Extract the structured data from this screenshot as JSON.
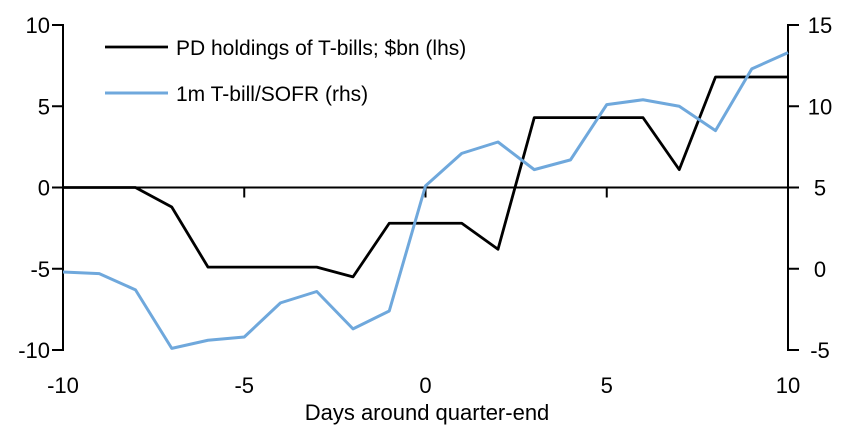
{
  "chart_data": {
    "type": "line",
    "title": "",
    "xlabel": "Days around quarter-end",
    "grid": false,
    "zero_line": true,
    "legend_position": "top-left",
    "x": [
      -10,
      -9,
      -8,
      -7,
      -6,
      -5,
      -4,
      -3,
      -2,
      -1,
      0,
      1,
      2,
      3,
      4,
      5,
      6,
      7,
      8,
      9,
      10
    ],
    "series": [
      {
        "name": "PD holdings of T-bills; $bn (lhs)",
        "axis": "left",
        "color": "#000000",
        "values": [
          0,
          0,
          0,
          -1.2,
          -4.9,
          -4.9,
          -4.9,
          -4.9,
          -5.5,
          -2.2,
          -2.2,
          -2.2,
          -3.8,
          4.3,
          4.3,
          4.3,
          4.3,
          1.1,
          6.8,
          6.8,
          6.8
        ]
      },
      {
        "name": "1m T-bill/SOFR (rhs)",
        "axis": "right",
        "color": "#6FA8DC",
        "values": [
          -0.2,
          -0.3,
          -1.3,
          -4.9,
          -4.4,
          -4.2,
          -2.1,
          -1.4,
          -3.7,
          -2.6,
          5.1,
          7.1,
          7.8,
          6.1,
          6.7,
          10.1,
          10.4,
          10.0,
          8.5,
          12.3,
          13.3
        ]
      }
    ],
    "left_axis": {
      "min": -10,
      "max": 10,
      "tick_values": [
        10,
        5,
        0,
        -5,
        -10
      ],
      "tick_labels": [
        "10",
        "5",
        "0",
        "-5",
        "-10"
      ]
    },
    "right_axis": {
      "min": -5,
      "max": 15,
      "tick_values": [
        15,
        10,
        5,
        0,
        -5
      ],
      "tick_labels": [
        "15",
        "10",
        "5",
        "0",
        "-5"
      ]
    },
    "x_axis": {
      "tick_values": [
        -10,
        -5,
        0,
        5,
        10
      ],
      "tick_labels": [
        "-10",
        "-5",
        "0",
        "5",
        "10"
      ],
      "inner_tick_values": [
        -5,
        0,
        5
      ]
    }
  }
}
